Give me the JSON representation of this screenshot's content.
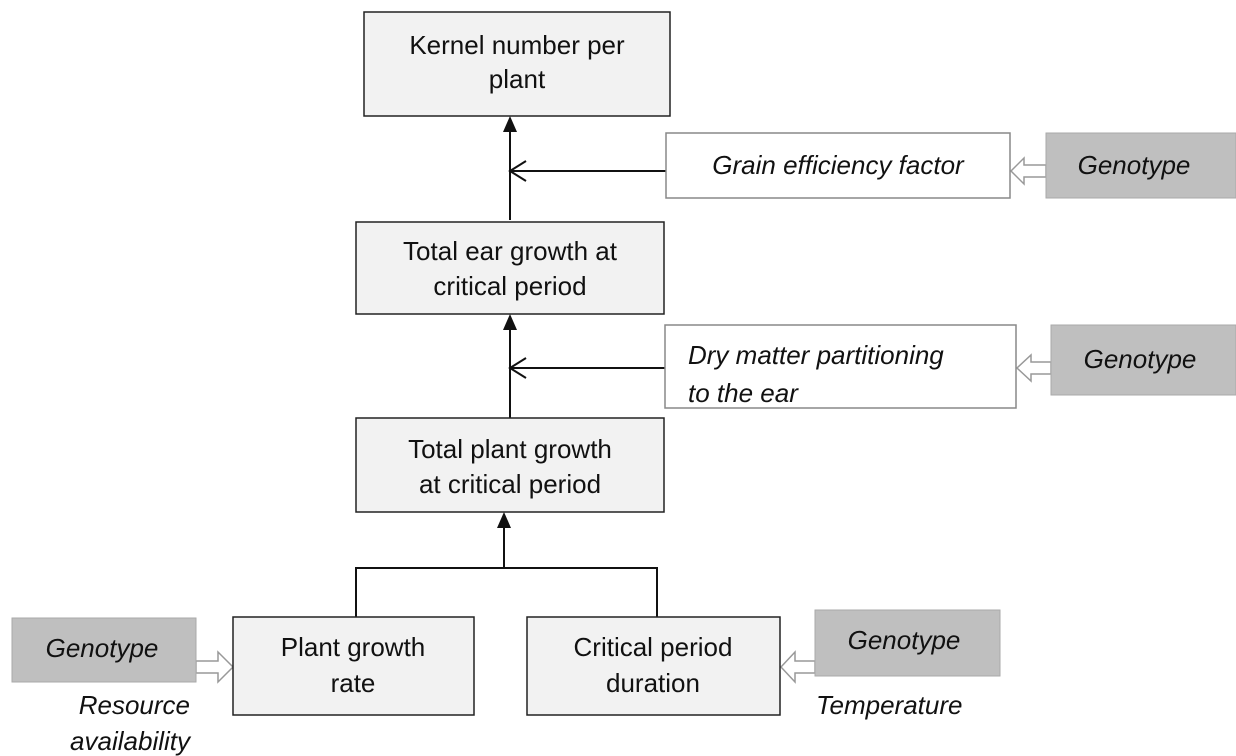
{
  "nodes": [
    {
      "label": [
        "Kernel number per",
        "plant"
      ]
    },
    {
      "label": [
        "Total ear growth at",
        "critical period"
      ]
    },
    {
      "label": [
        "Total plant growth",
        "at critical period"
      ]
    },
    {
      "label": [
        "Plant growth",
        "rate"
      ]
    },
    {
      "label": [
        "Critical period",
        "duration"
      ]
    }
  ],
  "factors": [
    {
      "label": [
        "Grain efficiency factor"
      ]
    },
    {
      "label": [
        "Dry matter partitioning",
        "to the ear"
      ]
    }
  ],
  "genotypes": [
    "Genotype",
    "Genotype",
    "Genotype",
    "Genotype"
  ],
  "inputs": [
    {
      "label": [
        "Resource",
        "availability"
      ]
    },
    {
      "label": [
        "Temperature"
      ]
    }
  ]
}
